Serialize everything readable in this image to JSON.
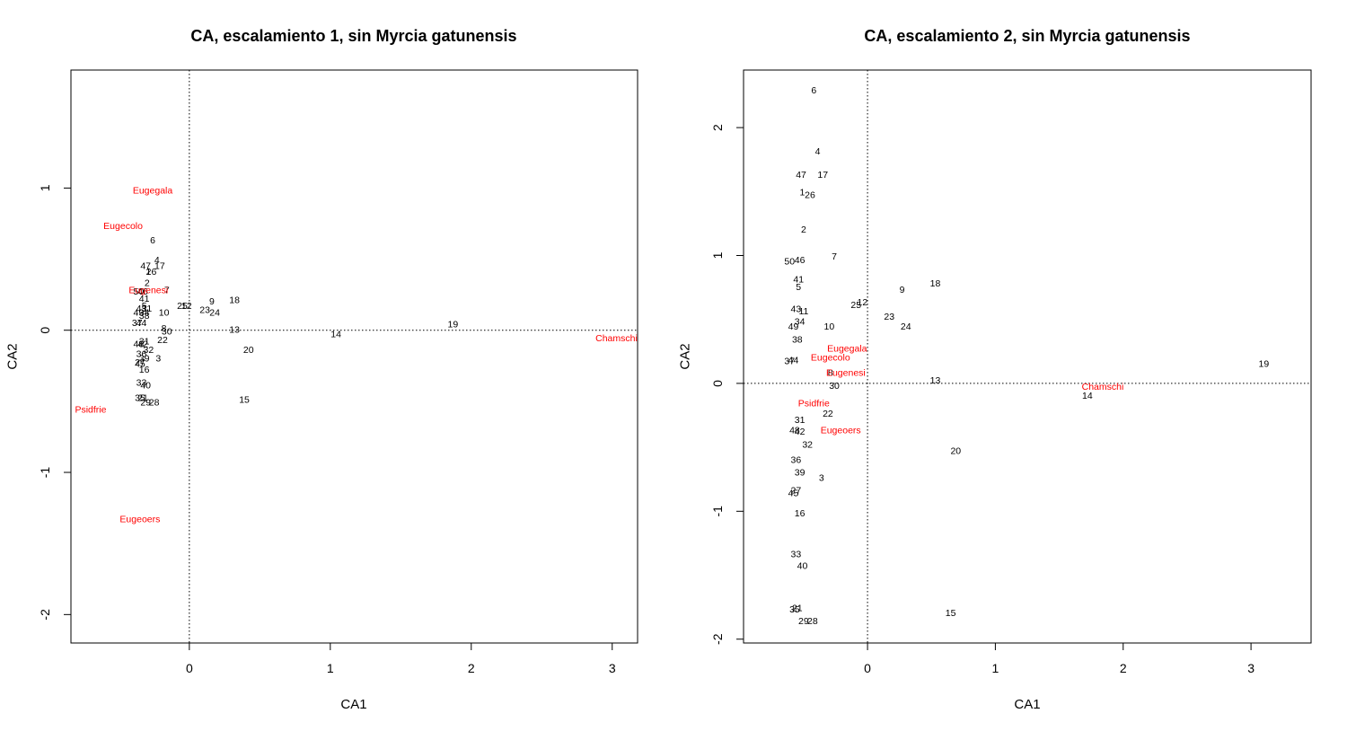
{
  "chart_data": [
    {
      "type": "scatter",
      "title": "CA, escalamiento 1, sin Myrcia gatunensis",
      "xlabel": "CA1",
      "ylabel": "CA2",
      "xlim": [
        -0.84,
        3.18
      ],
      "ylim": [
        -2.2,
        1.83
      ],
      "xticks": [
        0,
        1,
        2,
        3
      ],
      "yticks": [
        -2,
        -1,
        0,
        1
      ],
      "reference_lines": {
        "x": 0,
        "y": 0
      },
      "point_color": "#000000",
      "species_color": "#ff0000",
      "sites": [
        {
          "label": "6",
          "x": -0.26,
          "y": 0.63
        },
        {
          "label": "4",
          "x": -0.23,
          "y": 0.49
        },
        {
          "label": "47",
          "x": -0.31,
          "y": 0.45
        },
        {
          "label": "17",
          "x": -0.21,
          "y": 0.45
        },
        {
          "label": "26",
          "x": -0.27,
          "y": 0.41
        },
        {
          "label": "1",
          "x": -0.29,
          "y": 0.41
        },
        {
          "label": "2",
          "x": -0.3,
          "y": 0.33
        },
        {
          "label": "7",
          "x": -0.16,
          "y": 0.28
        },
        {
          "label": "50",
          "x": -0.36,
          "y": 0.27
        },
        {
          "label": "46",
          "x": -0.33,
          "y": 0.27
        },
        {
          "label": "41",
          "x": -0.32,
          "y": 0.22
        },
        {
          "label": "5",
          "x": -0.32,
          "y": 0.17
        },
        {
          "label": "9",
          "x": 0.16,
          "y": 0.2
        },
        {
          "label": "18",
          "x": 0.32,
          "y": 0.21
        },
        {
          "label": "25",
          "x": -0.05,
          "y": 0.17
        },
        {
          "label": "12",
          "x": -0.02,
          "y": 0.17
        },
        {
          "label": "23",
          "x": 0.11,
          "y": 0.14
        },
        {
          "label": "24",
          "x": 0.18,
          "y": 0.12
        },
        {
          "label": "43",
          "x": -0.34,
          "y": 0.15
        },
        {
          "label": "11",
          "x": -0.3,
          "y": 0.15
        },
        {
          "label": "10",
          "x": -0.18,
          "y": 0.12
        },
        {
          "label": "49",
          "x": -0.36,
          "y": 0.12
        },
        {
          "label": "34",
          "x": -0.32,
          "y": 0.12
        },
        {
          "label": "38",
          "x": -0.32,
          "y": 0.1
        },
        {
          "label": "37",
          "x": -0.37,
          "y": 0.05
        },
        {
          "label": "44",
          "x": -0.34,
          "y": 0.05
        },
        {
          "label": "8",
          "x": -0.18,
          "y": 0.01
        },
        {
          "label": "30",
          "x": -0.16,
          "y": -0.01
        },
        {
          "label": "13",
          "x": 0.32,
          "y": 0.0
        },
        {
          "label": "19",
          "x": 1.87,
          "y": 0.04
        },
        {
          "label": "14",
          "x": 1.04,
          "y": -0.03
        },
        {
          "label": "22",
          "x": -0.19,
          "y": -0.07
        },
        {
          "label": "31",
          "x": -0.32,
          "y": -0.08
        },
        {
          "label": "48",
          "x": -0.36,
          "y": -0.1
        },
        {
          "label": "42",
          "x": -0.33,
          "y": -0.1
        },
        {
          "label": "32",
          "x": -0.29,
          "y": -0.14
        },
        {
          "label": "20",
          "x": 0.42,
          "y": -0.14
        },
        {
          "label": "36",
          "x": -0.34,
          "y": -0.17
        },
        {
          "label": "39",
          "x": -0.32,
          "y": -0.2
        },
        {
          "label": "3",
          "x": -0.22,
          "y": -0.2
        },
        {
          "label": "27",
          "x": -0.35,
          "y": -0.23
        },
        {
          "label": "45",
          "x": -0.35,
          "y": -0.24
        },
        {
          "label": "16",
          "x": -0.32,
          "y": -0.28
        },
        {
          "label": "33",
          "x": -0.34,
          "y": -0.37
        },
        {
          "label": "40",
          "x": -0.31,
          "y": -0.39
        },
        {
          "label": "35",
          "x": -0.35,
          "y": -0.48
        },
        {
          "label": "21",
          "x": -0.33,
          "y": -0.48
        },
        {
          "label": "29",
          "x": -0.31,
          "y": -0.51
        },
        {
          "label": "28",
          "x": -0.25,
          "y": -0.51
        },
        {
          "label": "15",
          "x": 0.39,
          "y": -0.49
        }
      ],
      "species": [
        {
          "label": "Eugegala",
          "x": -0.26,
          "y": 0.98
        },
        {
          "label": "Eugecolo",
          "x": -0.47,
          "y": 0.73
        },
        {
          "label": "Eugenesi",
          "x": -0.29,
          "y": 0.28
        },
        {
          "label": "Chamschi",
          "x": 3.03,
          "y": -0.06
        },
        {
          "label": "Psidfrie",
          "x": -0.7,
          "y": -0.56
        },
        {
          "label": "Eugeoers",
          "x": -0.35,
          "y": -1.33
        }
      ]
    },
    {
      "type": "scatter",
      "title": "CA, escalamiento 2, sin Myrcia gatunensis",
      "xlabel": "CA1",
      "ylabel": "CA2",
      "xlim": [
        -0.97,
        3.47
      ],
      "ylim": [
        -2.03,
        2.45
      ],
      "xticks": [
        0,
        1,
        2,
        3
      ],
      "yticks": [
        -2,
        -1,
        0,
        1,
        2
      ],
      "reference_lines": {
        "x": 0,
        "y": 0
      },
      "point_color": "#000000",
      "species_color": "#ff0000",
      "sites": [
        {
          "label": "6",
          "x": -0.42,
          "y": 2.29
        },
        {
          "label": "4",
          "x": -0.39,
          "y": 1.81
        },
        {
          "label": "47",
          "x": -0.52,
          "y": 1.63
        },
        {
          "label": "17",
          "x": -0.35,
          "y": 1.63
        },
        {
          "label": "1",
          "x": -0.51,
          "y": 1.49
        },
        {
          "label": "26",
          "x": -0.45,
          "y": 1.47
        },
        {
          "label": "2",
          "x": -0.5,
          "y": 1.2
        },
        {
          "label": "7",
          "x": -0.26,
          "y": 0.99
        },
        {
          "label": "50",
          "x": -0.61,
          "y": 0.95
        },
        {
          "label": "46",
          "x": -0.53,
          "y": 0.96
        },
        {
          "label": "41",
          "x": -0.54,
          "y": 0.81
        },
        {
          "label": "5",
          "x": -0.54,
          "y": 0.75
        },
        {
          "label": "9",
          "x": 0.27,
          "y": 0.73
        },
        {
          "label": "18",
          "x": 0.53,
          "y": 0.78
        },
        {
          "label": "25",
          "x": -0.09,
          "y": 0.61
        },
        {
          "label": "12",
          "x": -0.04,
          "y": 0.63
        },
        {
          "label": "23",
          "x": 0.17,
          "y": 0.52
        },
        {
          "label": "24",
          "x": 0.3,
          "y": 0.44
        },
        {
          "label": "43",
          "x": -0.56,
          "y": 0.58
        },
        {
          "label": "11",
          "x": -0.5,
          "y": 0.56
        },
        {
          "label": "34",
          "x": -0.53,
          "y": 0.48
        },
        {
          "label": "10",
          "x": -0.3,
          "y": 0.44
        },
        {
          "label": "49",
          "x": -0.58,
          "y": 0.44
        },
        {
          "label": "38",
          "x": -0.55,
          "y": 0.34
        },
        {
          "label": "37",
          "x": -0.61,
          "y": 0.17
        },
        {
          "label": "44",
          "x": -0.58,
          "y": 0.18
        },
        {
          "label": "8",
          "x": -0.29,
          "y": 0.08
        },
        {
          "label": "30",
          "x": -0.26,
          "y": -0.02
        },
        {
          "label": "13",
          "x": 0.53,
          "y": 0.02
        },
        {
          "label": "19",
          "x": 3.1,
          "y": 0.15
        },
        {
          "label": "14",
          "x": 1.72,
          "y": -0.1
        },
        {
          "label": "22",
          "x": -0.31,
          "y": -0.24
        },
        {
          "label": "31",
          "x": -0.53,
          "y": -0.29
        },
        {
          "label": "48",
          "x": -0.57,
          "y": -0.37
        },
        {
          "label": "42",
          "x": -0.53,
          "y": -0.38
        },
        {
          "label": "32",
          "x": -0.47,
          "y": -0.48
        },
        {
          "label": "20",
          "x": 0.69,
          "y": -0.53
        },
        {
          "label": "36",
          "x": -0.56,
          "y": -0.6
        },
        {
          "label": "39",
          "x": -0.53,
          "y": -0.7
        },
        {
          "label": "3",
          "x": -0.36,
          "y": -0.74
        },
        {
          "label": "27",
          "x": -0.56,
          "y": -0.84
        },
        {
          "label": "45",
          "x": -0.58,
          "y": -0.86
        },
        {
          "label": "16",
          "x": -0.53,
          "y": -1.02
        },
        {
          "label": "33",
          "x": -0.56,
          "y": -1.34
        },
        {
          "label": "40",
          "x": -0.51,
          "y": -1.43
        },
        {
          "label": "35",
          "x": -0.57,
          "y": -1.77
        },
        {
          "label": "21",
          "x": -0.55,
          "y": -1.76
        },
        {
          "label": "29",
          "x": -0.5,
          "y": -1.86
        },
        {
          "label": "28",
          "x": -0.43,
          "y": -1.86
        },
        {
          "label": "15",
          "x": 0.65,
          "y": -1.8
        }
      ],
      "species": [
        {
          "label": "Eugegala",
          "x": -0.16,
          "y": 0.27
        },
        {
          "label": "Eugecolo",
          "x": -0.29,
          "y": 0.2
        },
        {
          "label": "Eugenesi",
          "x": -0.17,
          "y": 0.08
        },
        {
          "label": "Chamschi",
          "x": 1.84,
          "y": -0.03
        },
        {
          "label": "Psidfrie",
          "x": -0.42,
          "y": -0.16
        },
        {
          "label": "Eugeoers",
          "x": -0.21,
          "y": -0.37
        }
      ]
    }
  ]
}
